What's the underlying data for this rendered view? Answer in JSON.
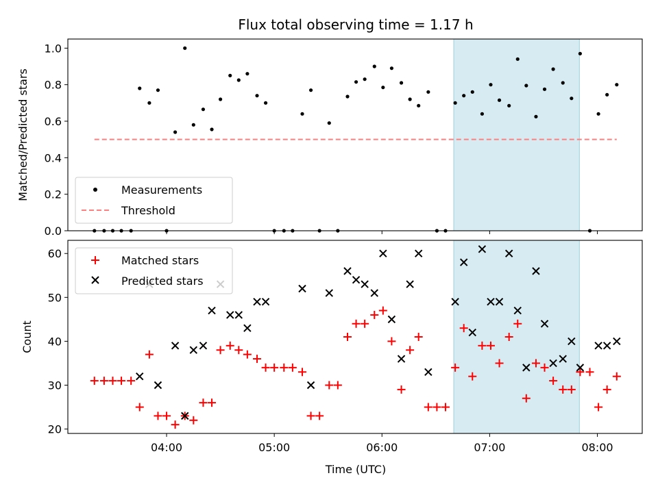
{
  "chart_data": [
    {
      "type": "scatter",
      "title": "Flux total observing time = 1.17 h",
      "xlabel": "",
      "ylabel": "Matched/Predicted stars",
      "ylim": [
        0,
        1.05
      ],
      "yticks": [
        0.0,
        0.2,
        0.4,
        0.6,
        0.8,
        1.0
      ],
      "ytick_labels": [
        "0.0",
        "0.2",
        "0.4",
        "0.6",
        "0.8",
        "1.0"
      ],
      "x_unit": "hours UTC",
      "xlim": [
        3.0833,
        8.4167
      ],
      "shaded_interval": {
        "x": [
          6.6667,
          7.8333
        ],
        "color": "#add8e6"
      },
      "legend": {
        "placement": "lower-left",
        "entries": [
          "Measurements",
          "Threshold"
        ]
      },
      "series": [
        {
          "name": "Measurements",
          "marker": "dot",
          "color": "#000000",
          "points": [
            [
              3.33,
              0
            ],
            [
              3.42,
              0
            ],
            [
              3.5,
              0
            ],
            [
              3.58,
              0
            ],
            [
              3.67,
              0
            ],
            [
              3.75,
              0.78
            ],
            [
              3.84,
              0.7
            ],
            [
              3.92,
              0.77
            ],
            [
              4.0,
              0
            ],
            [
              4.08,
              0.54
            ],
            [
              4.17,
              1.0
            ],
            [
              4.25,
              0.58
            ],
            [
              4.34,
              0.665
            ],
            [
              4.42,
              0.555
            ],
            [
              4.5,
              0.72
            ],
            [
              4.59,
              0.85
            ],
            [
              4.67,
              0.825
            ],
            [
              4.75,
              0.86
            ],
            [
              4.84,
              0.74
            ],
            [
              4.92,
              0.7
            ],
            [
              5.0,
              0
            ],
            [
              5.09,
              0
            ],
            [
              5.17,
              0
            ],
            [
              5.26,
              0.64
            ],
            [
              5.34,
              0.77
            ],
            [
              5.42,
              0
            ],
            [
              5.51,
              0.59
            ],
            [
              5.59,
              0
            ],
            [
              5.68,
              0.735
            ],
            [
              5.76,
              0.815
            ],
            [
              5.84,
              0.83
            ],
            [
              5.93,
              0.9
            ],
            [
              6.01,
              0.785
            ],
            [
              6.09,
              0.89
            ],
            [
              6.18,
              0.81
            ],
            [
              6.26,
              0.72
            ],
            [
              6.34,
              0.685
            ],
            [
              6.43,
              0.76
            ],
            [
              6.51,
              0
            ],
            [
              6.59,
              0
            ],
            [
              6.68,
              0.7
            ],
            [
              6.76,
              0.74
            ],
            [
              6.84,
              0.76
            ],
            [
              6.93,
              0.64
            ],
            [
              7.01,
              0.8
            ],
            [
              7.09,
              0.715
            ],
            [
              7.18,
              0.685
            ],
            [
              7.26,
              0.94
            ],
            [
              7.34,
              0.795
            ],
            [
              7.43,
              0.625
            ],
            [
              7.51,
              0.775
            ],
            [
              7.59,
              0.885
            ],
            [
              7.68,
              0.81
            ],
            [
              7.76,
              0.725
            ],
            [
              7.84,
              0.97
            ],
            [
              7.93,
              0
            ],
            [
              8.01,
              0.64
            ],
            [
              8.09,
              0.745
            ],
            [
              8.18,
              0.8
            ]
          ]
        },
        {
          "name": "Threshold",
          "style": "dashed-line",
          "color": "#ff7f7f",
          "points": [
            [
              3.33,
              0.5
            ],
            [
              8.18,
              0.5
            ]
          ]
        }
      ]
    },
    {
      "type": "scatter",
      "title": "",
      "xlabel": "Time (UTC)",
      "ylabel": "Count",
      "ylim": [
        19,
        63
      ],
      "yticks": [
        20,
        30,
        40,
        50,
        60
      ],
      "ytick_labels": [
        "20",
        "30",
        "40",
        "50",
        "60"
      ],
      "x_unit": "hours UTC",
      "xlim": [
        3.0833,
        8.4167
      ],
      "xticks": [
        4,
        5,
        6,
        7,
        8
      ],
      "xtick_labels": [
        "04:00",
        "05:00",
        "06:00",
        "07:00",
        "08:00"
      ],
      "shaded_interval": {
        "x": [
          6.6667,
          7.8333
        ],
        "color": "#add8e6"
      },
      "legend": {
        "placement": "top-left",
        "entries": [
          "Matched stars",
          "Predicted stars"
        ]
      },
      "series": [
        {
          "name": "Matched stars",
          "marker": "plus",
          "color": "#ff0000",
          "points": [
            [
              3.33,
              31
            ],
            [
              3.42,
              31
            ],
            [
              3.5,
              31
            ],
            [
              3.58,
              31
            ],
            [
              3.67,
              31
            ],
            [
              3.75,
              25
            ],
            [
              3.84,
              37
            ],
            [
              3.92,
              23
            ],
            [
              4.0,
              23
            ],
            [
              4.08,
              21
            ],
            [
              4.17,
              23
            ],
            [
              4.25,
              22
            ],
            [
              4.34,
              26
            ],
            [
              4.42,
              26
            ],
            [
              4.5,
              38
            ],
            [
              4.59,
              39
            ],
            [
              4.67,
              38
            ],
            [
              4.75,
              37
            ],
            [
              4.84,
              36
            ],
            [
              4.92,
              34
            ],
            [
              5.0,
              34
            ],
            [
              5.09,
              34
            ],
            [
              5.17,
              34
            ],
            [
              5.26,
              33
            ],
            [
              5.34,
              23
            ],
            [
              5.42,
              23
            ],
            [
              5.51,
              30
            ],
            [
              5.59,
              30
            ],
            [
              5.68,
              41
            ],
            [
              5.76,
              44
            ],
            [
              5.84,
              44
            ],
            [
              5.93,
              46
            ],
            [
              6.01,
              47
            ],
            [
              6.09,
              40
            ],
            [
              6.18,
              29
            ],
            [
              6.26,
              38
            ],
            [
              6.34,
              41
            ],
            [
              6.43,
              25
            ],
            [
              6.51,
              25
            ],
            [
              6.59,
              25
            ],
            [
              6.68,
              34
            ],
            [
              6.76,
              43
            ],
            [
              6.84,
              32
            ],
            [
              6.93,
              39
            ],
            [
              7.01,
              39
            ],
            [
              7.09,
              35
            ],
            [
              7.18,
              41
            ],
            [
              7.26,
              44
            ],
            [
              7.34,
              27
            ],
            [
              7.43,
              35
            ],
            [
              7.51,
              34
            ],
            [
              7.59,
              31
            ],
            [
              7.68,
              29
            ],
            [
              7.76,
              29
            ],
            [
              7.84,
              33
            ],
            [
              7.93,
              33
            ],
            [
              8.01,
              25
            ],
            [
              8.09,
              29
            ],
            [
              8.18,
              32
            ]
          ]
        },
        {
          "name": "Predicted stars",
          "marker": "x",
          "color": "#000000",
          "points": [
            [
              3.75,
              32
            ],
            [
              3.84,
              53
            ],
            [
              3.92,
              30
            ],
            [
              4.08,
              39
            ],
            [
              4.17,
              23
            ],
            [
              4.25,
              38
            ],
            [
              4.34,
              39
            ],
            [
              4.42,
              47
            ],
            [
              4.5,
              53
            ],
            [
              4.59,
              46
            ],
            [
              4.67,
              46
            ],
            [
              4.75,
              43
            ],
            [
              4.84,
              49
            ],
            [
              4.92,
              49
            ],
            [
              5.26,
              52
            ],
            [
              5.34,
              30
            ],
            [
              5.51,
              51
            ],
            [
              5.68,
              56
            ],
            [
              5.76,
              54
            ],
            [
              5.84,
              53
            ],
            [
              5.93,
              51
            ],
            [
              6.01,
              60
            ],
            [
              6.09,
              45
            ],
            [
              6.18,
              36
            ],
            [
              6.26,
              53
            ],
            [
              6.34,
              60
            ],
            [
              6.43,
              33
            ],
            [
              6.68,
              49
            ],
            [
              6.76,
              58
            ],
            [
              6.84,
              42
            ],
            [
              6.93,
              61
            ],
            [
              7.01,
              49
            ],
            [
              7.09,
              49
            ],
            [
              7.18,
              60
            ],
            [
              7.26,
              47
            ],
            [
              7.34,
              34
            ],
            [
              7.43,
              56
            ],
            [
              7.51,
              44
            ],
            [
              7.59,
              35
            ],
            [
              7.68,
              36
            ],
            [
              7.76,
              40
            ],
            [
              7.84,
              34
            ],
            [
              8.01,
              39
            ],
            [
              8.09,
              39
            ],
            [
              8.18,
              40
            ]
          ]
        }
      ]
    }
  ]
}
